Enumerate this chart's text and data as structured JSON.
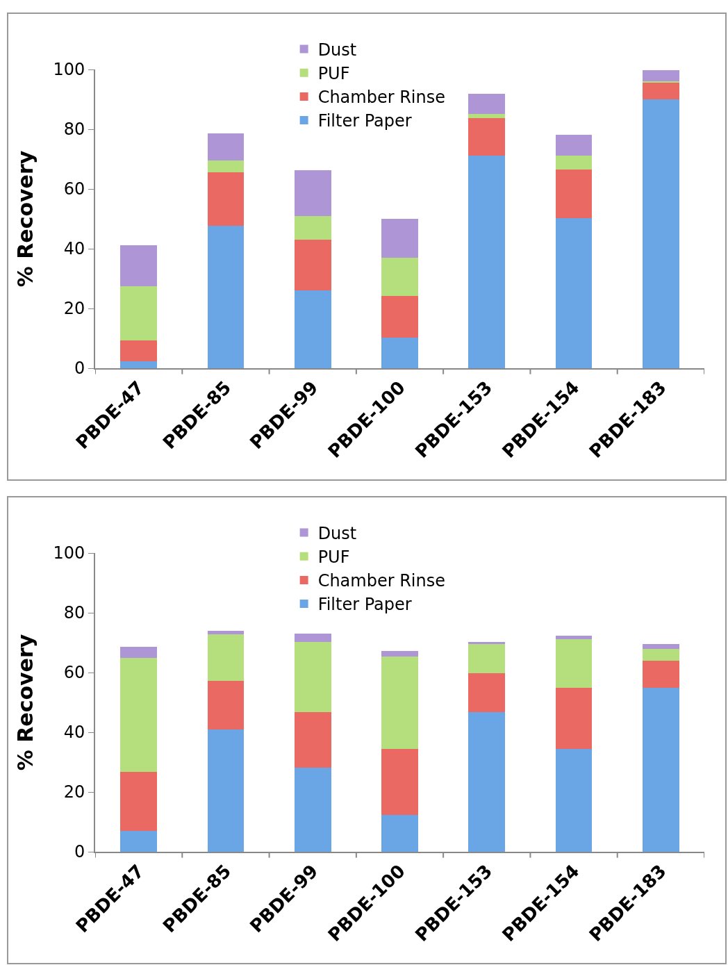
{
  "chart_data": [
    {
      "type": "bar",
      "stacked": true,
      "ylabel": "% Recovery",
      "categories": [
        "PBDE-47",
        "PBDE-85",
        "PBDE-99",
        "PBDE-100",
        "PBDE-153",
        "PBDE-154",
        "PBDE-183"
      ],
      "ylim": [
        0,
        100
      ],
      "yticks": [
        0,
        20,
        40,
        60,
        80,
        100
      ],
      "grid": false,
      "legend": "top",
      "series": [
        {
          "name": "Filter Paper",
          "color": "#6aa6e6",
          "values": [
            2.3,
            47.7,
            26.1,
            10.3,
            71.1,
            50.2,
            89.9
          ]
        },
        {
          "name": "Chamber Rinse",
          "color": "#ea6a63",
          "values": [
            7.1,
            17.8,
            16.9,
            13.9,
            12.7,
            16.2,
            5.6
          ]
        },
        {
          "name": "PUF",
          "color": "#b5de7c",
          "values": [
            18.1,
            4.0,
            7.9,
            12.7,
            1.4,
            4.7,
            0.5
          ]
        },
        {
          "name": "Dust",
          "color": "#ad95d6",
          "values": [
            13.6,
            9.1,
            15.3,
            13.1,
            6.6,
            7.1,
            3.8
          ]
        }
      ]
    },
    {
      "type": "bar",
      "stacked": true,
      "ylabel": "% Recovery",
      "categories": [
        "PBDE-47",
        "PBDE-85",
        "PBDE-99",
        "PBDE-100",
        "PBDE-153",
        "PBDE-154",
        "PBDE-183"
      ],
      "ylim": [
        0,
        100
      ],
      "yticks": [
        0,
        20,
        40,
        60,
        80,
        100
      ],
      "grid": false,
      "legend": "top",
      "series": [
        {
          "name": "Filter Paper",
          "color": "#6aa6e6",
          "values": [
            6.9,
            41.0,
            28.2,
            12.4,
            46.8,
            34.4,
            54.9
          ]
        },
        {
          "name": "Chamber Rinse",
          "color": "#ea6a63",
          "values": [
            19.8,
            16.3,
            18.6,
            22.0,
            12.9,
            20.5,
            9.1
          ]
        },
        {
          "name": "PUF",
          "color": "#b5de7c",
          "values": [
            38.2,
            15.5,
            23.4,
            31.0,
            9.8,
            16.2,
            4.0
          ]
        },
        {
          "name": "Dust",
          "color": "#ad95d6",
          "values": [
            3.8,
            1.2,
            2.8,
            1.9,
            0.7,
            1.2,
            1.5
          ]
        }
      ]
    }
  ]
}
